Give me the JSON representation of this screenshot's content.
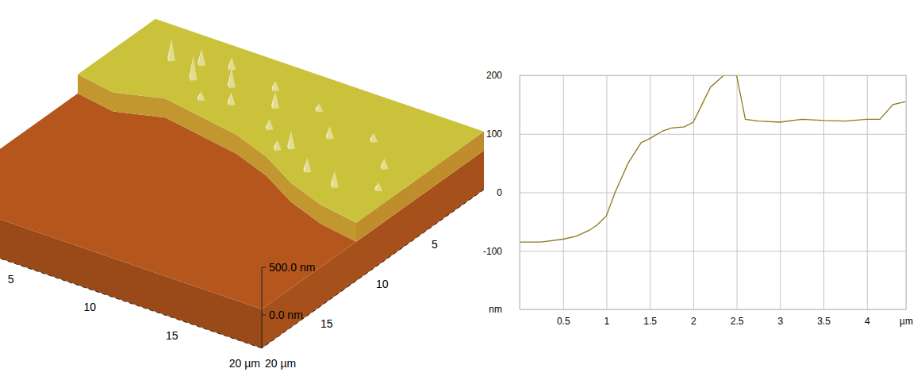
{
  "chart_data": [
    {
      "type": "surface",
      "xlim": [
        0,
        20
      ],
      "ylim": [
        0,
        20
      ],
      "zlim": [
        -350,
        500
      ],
      "xticks": [
        5,
        10,
        15,
        {
          "value": 20,
          "label": "20 µm"
        }
      ],
      "yticks": [
        5,
        10,
        15,
        {
          "value": 20,
          "label": "20 µm"
        }
      ],
      "zticks": [
        {
          "value": 0,
          "label": "0.0 nm"
        },
        {
          "value": 500,
          "label": "500.0 nm"
        }
      ],
      "low": 60,
      "high": 260,
      "edge": {
        "x": [
          0,
          2.5,
          5,
          7.5,
          10,
          12.5,
          15,
          17.5,
          20
        ],
        "y": [
          7,
          7.5,
          6.5,
          7,
          7.5,
          8.5,
          10,
          11,
          11.5
        ]
      },
      "peaks": {
        "x": [
          3,
          4.5,
          5,
          6,
          7,
          8,
          9,
          10,
          11,
          12,
          13,
          14,
          15,
          16,
          17,
          18,
          19,
          12.5,
          6.5
        ],
        "y": [
          3,
          2.5,
          4,
          2,
          3.5,
          5,
          2.5,
          4,
          6,
          3,
          7,
          5,
          8.5,
          4,
          9,
          6,
          8,
          7.5,
          5.5
        ],
        "z": [
          480,
          420,
          500,
          380,
          450,
          380,
          350,
          420,
          360,
          330,
          440,
          380,
          400,
          340,
          420,
          360,
          330,
          350,
          340
        ]
      },
      "colors": [
        "#b5571d",
        "#cbc23c"
      ]
    },
    {
      "type": "line",
      "xlim": [
        0,
        4.45
      ],
      "ylim": [
        -200,
        200
      ],
      "xticks": [
        0.5,
        1,
        1.5,
        2,
        2.5,
        3,
        3.5,
        4,
        {
          "value": 4.45,
          "label": "µm"
        }
      ],
      "yticks": [
        {
          "value": -200,
          "label": "nm"
        },
        -100,
        0,
        100,
        200
      ],
      "x": [
        0,
        0.25,
        0.5,
        0.65,
        0.8,
        0.9,
        1.0,
        1.1,
        1.25,
        1.4,
        1.5,
        1.65,
        1.75,
        1.9,
        2.0,
        2.1,
        2.2,
        2.35,
        2.5,
        2.6,
        2.75,
        3.0,
        3.25,
        3.5,
        3.75,
        4.0,
        4.15,
        4.3,
        4.45
      ],
      "values": [
        -85,
        -85,
        -80,
        -75,
        -65,
        -55,
        -40,
        0,
        50,
        85,
        92,
        105,
        110,
        112,
        120,
        150,
        180,
        200,
        200,
        125,
        122,
        120,
        125,
        123,
        122,
        125,
        125,
        150,
        155
      ],
      "color": "#8c7a1e",
      "grid": true
    }
  ]
}
